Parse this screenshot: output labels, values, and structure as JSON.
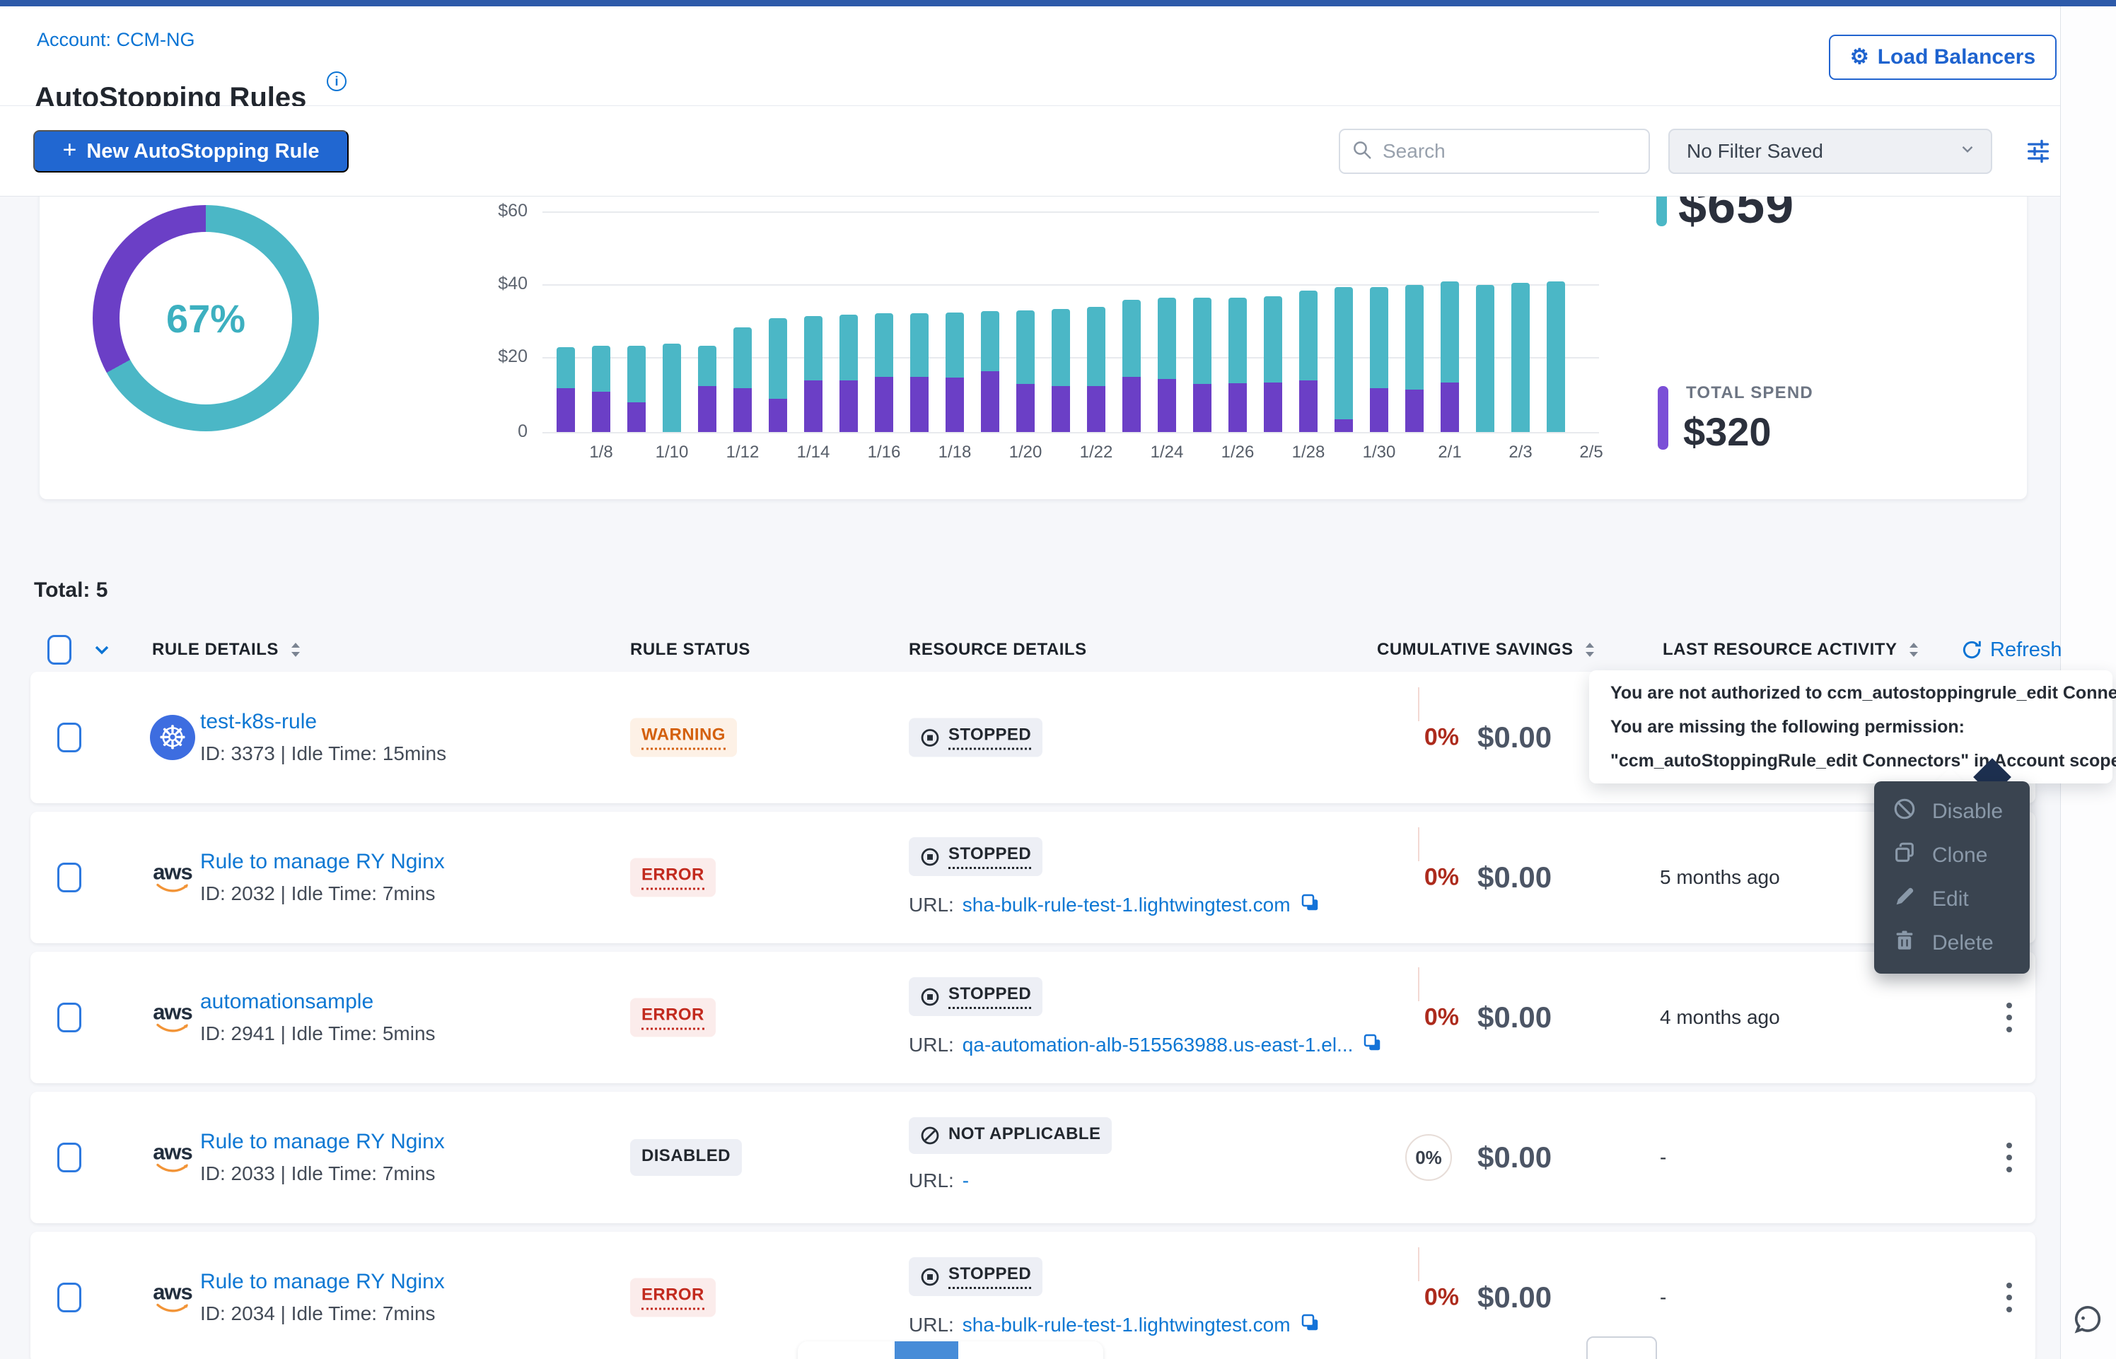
{
  "account": {
    "label": "Account: CCM-NG"
  },
  "page": {
    "title": "AutoStopping Rules"
  },
  "header": {
    "load_balancers_label": "Load Balancers"
  },
  "toolbar": {
    "new_rule_label": "New AutoStopping Rule",
    "search_placeholder": "Search",
    "filter_value": "No Filter Saved"
  },
  "summary": {
    "savings_value": "$659",
    "total_spend_label": "TOTAL SPEND",
    "total_spend_value": "$320",
    "colors": {
      "teal": "#4BB7C6",
      "purple": "#6B3FC6",
      "red": "#AD2B1D",
      "orange": "#D4600D",
      "primary_blue": "#2167D1",
      "link_blue": "#0D77D3"
    }
  },
  "chart_data": [
    {
      "type": "pie",
      "subtype": "donut",
      "labels": [
        "savings",
        "spend"
      ],
      "values": [
        67,
        33
      ],
      "colors": [
        "#4BB7C6",
        "#6B3FC6"
      ],
      "center_label": "67%"
    },
    {
      "type": "bar",
      "stacked": true,
      "x": [
        "1/7",
        "1/8",
        "1/9",
        "1/10",
        "1/11",
        "1/12",
        "1/13",
        "1/14",
        "1/15",
        "1/16",
        "1/17",
        "1/18",
        "1/19",
        "1/20",
        "1/21",
        "1/22",
        "1/23",
        "1/24",
        "1/25",
        "1/26",
        "1/27",
        "1/28",
        "1/29",
        "1/30",
        "1/31",
        "2/1",
        "2/2",
        "2/3",
        "2/4"
      ],
      "series": [
        {
          "name": "purple",
          "color": "#6B3FC6",
          "values": [
            12,
            11,
            8,
            0,
            12.5,
            12,
            9,
            14,
            14,
            15,
            15,
            14.8,
            16.5,
            13,
            12.5,
            12.5,
            15,
            14.5,
            13,
            13.3,
            13.5,
            14,
            3.5,
            12,
            11.5,
            13.5,
            0,
            0,
            0
          ]
        },
        {
          "name": "teal",
          "color": "#4BB7C6",
          "values": [
            11,
            12.5,
            15.5,
            24,
            11,
            16.5,
            22,
            17.5,
            18,
            17.3,
            17.3,
            17.7,
            16.3,
            20,
            21,
            21.5,
            21,
            22,
            23.5,
            23.3,
            23.5,
            24.5,
            36,
            27.5,
            28.5,
            27.5,
            40,
            40.5,
            41
          ]
        }
      ],
      "ytick_labels": [
        "$60",
        "$40",
        "$20",
        "0"
      ],
      "ylim": [
        0,
        60
      ],
      "xtick_labels": [
        "1/8",
        "1/10",
        "1/12",
        "1/14",
        "1/16",
        "1/18",
        "1/20",
        "1/22",
        "1/24",
        "1/26",
        "1/28",
        "1/30",
        "2/1",
        "2/3",
        "2/5"
      ],
      "xtick_slots": [
        1,
        3,
        5,
        7,
        9,
        11,
        13,
        15,
        17,
        19,
        21,
        23,
        25,
        27,
        29
      ],
      "grid": true,
      "legend": false
    }
  ],
  "table": {
    "total_label": "Total: 5",
    "refresh_label": "Refresh",
    "columns": [
      {
        "label": "RULE DETAILS",
        "sortable": true
      },
      {
        "label": "RULE STATUS",
        "sortable": false
      },
      {
        "label": "RESOURCE DETAILS",
        "sortable": false
      },
      {
        "label": "CUMULATIVE SAVINGS",
        "sortable": true
      },
      {
        "label": "LAST RESOURCE ACTIVITY",
        "sortable": true
      }
    ],
    "rows": [
      {
        "provider": "kubernetes",
        "name": "test-k8s-rule",
        "meta": "ID: 3373 | Idle Time: 15mins",
        "status": "WARNING",
        "status_type": "warning",
        "resource_status": "STOPPED",
        "resource_type": "stopped",
        "url_label": null,
        "url": null,
        "url_copy": false,
        "savings_percent": "0%",
        "savings_percent_style": "red",
        "savings_amount": "$0.00",
        "last_activity": null
      },
      {
        "provider": "aws",
        "name": "Rule to manage RY Nginx",
        "meta": "ID: 2032 | Idle Time: 7mins",
        "status": "ERROR",
        "status_type": "error",
        "resource_status": "STOPPED",
        "resource_type": "stopped",
        "url_label": "URL:",
        "url": "sha-bulk-rule-test-1.lightwingtest.com",
        "url_copy": true,
        "savings_percent": "0%",
        "savings_percent_style": "red",
        "savings_amount": "$0.00",
        "last_activity": "5 months ago"
      },
      {
        "provider": "aws",
        "name": "automationsample",
        "meta": "ID: 2941 | Idle Time: 5mins",
        "status": "ERROR",
        "status_type": "error",
        "resource_status": "STOPPED",
        "resource_type": "stopped",
        "url_label": "URL:",
        "url": "qa-automation-alb-515563988.us-east-1.el...",
        "url_copy": true,
        "savings_percent": "0%",
        "savings_percent_style": "red",
        "savings_amount": "$0.00",
        "last_activity": "4 months ago"
      },
      {
        "provider": "aws",
        "name": "Rule to manage RY Nginx",
        "meta": "ID: 2033 | Idle Time: 7mins",
        "status": "DISABLED",
        "status_type": "disabled",
        "resource_status": "NOT APPLICABLE",
        "resource_type": "not-applicable",
        "url_label": "URL:",
        "url": "-",
        "url_copy": false,
        "savings_percent": "0%",
        "savings_percent_style": "circle",
        "savings_amount": "$0.00",
        "last_activity": "-"
      },
      {
        "provider": "aws",
        "name": "Rule to manage RY Nginx",
        "meta": "ID: 2034 | Idle Time: 7mins",
        "status": "ERROR",
        "status_type": "error",
        "resource_status": "STOPPED",
        "resource_type": "stopped",
        "url_label": "URL:",
        "url": "sha-bulk-rule-test-1.lightwingtest.com",
        "url_copy": true,
        "savings_percent": "0%",
        "savings_percent_style": "red",
        "savings_amount": "$0.00",
        "last_activity": "-"
      }
    ]
  },
  "tooltip": {
    "lines": [
      "You are not authorized to ccm_autostoppingrule_edit Connectors.",
      "You are missing the following permission:",
      "\"ccm_autoStoppingRule_edit Connectors\" in Account scope"
    ]
  },
  "context_menu": {
    "items": [
      {
        "label": "Disable",
        "icon": "disable-icon"
      },
      {
        "label": "Clone",
        "icon": "clone-icon"
      },
      {
        "label": "Edit",
        "icon": "edit-icon"
      },
      {
        "label": "Delete",
        "icon": "delete-icon"
      }
    ]
  }
}
